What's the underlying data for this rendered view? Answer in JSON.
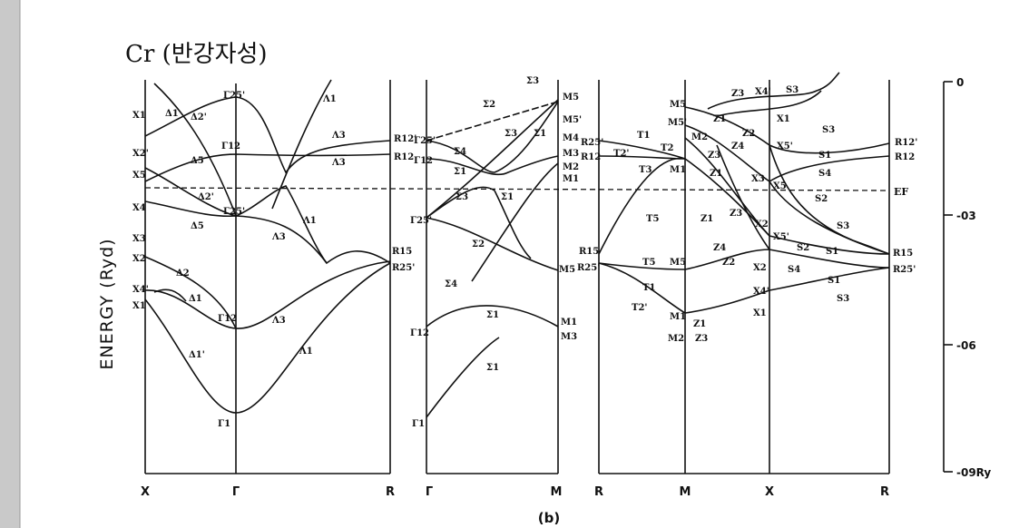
{
  "title": "Cr (반강자성)",
  "y_axis_label": "ENERGY (Ryd)",
  "caption": "(b)",
  "energy_ticks": [
    "0",
    "-03",
    "-06",
    "-09Ry"
  ],
  "fermi_label": "EF",
  "path_labels": [
    "X",
    "Γ",
    "R",
    "Γ",
    "M",
    "R",
    "M",
    "X",
    "R"
  ],
  "panels": [
    {
      "labels": [
        "X1",
        "X2'",
        "X5",
        "X4",
        "X3",
        "X2",
        "X4'",
        "X1",
        "Γ25'",
        "Γ12",
        "Γ25'",
        "Γ12",
        "Γ1",
        "Δ1",
        "Δ2'",
        "Δ5",
        "Δ2'",
        "Δ5",
        "Δ2",
        "Δ1",
        "Δ1'",
        "Λ1",
        "Λ3",
        "Λ3",
        "Λ1",
        "Λ3",
        "Λ3",
        "Λ1",
        "R12'",
        "R12",
        "R15",
        "R25'"
      ]
    },
    {
      "labels": [
        "Γ25'",
        "Γ12",
        "Γ25'",
        "Γ12",
        "Γ1",
        "Σ2",
        "Σ3",
        "Σ3",
        "Σ1",
        "Σ4",
        "Σ1",
        "Σ3",
        "Σ1",
        "Σ2",
        "Σ4",
        "Σ1",
        "Σ1",
        "M5",
        "M5'",
        "M4",
        "M3",
        "M2",
        "M1",
        "M5",
        "M1",
        "M3"
      ]
    },
    {
      "labels": [
        "R25'",
        "R12",
        "R15",
        "R25'",
        "T1",
        "T2'",
        "T2",
        "T3",
        "M1",
        "M5",
        "M5'",
        "M2",
        "T5",
        "T5",
        "M5",
        "T1",
        "T2'",
        "M1",
        "Z1",
        "M2",
        "Z3",
        "Z3",
        "X4'",
        "S3",
        "X1",
        "Z1",
        "Z2",
        "Z4",
        "X5'",
        "S3",
        "S1",
        "Z3",
        "Z1",
        "X3",
        "X5",
        "S4",
        "S2",
        "Z1",
        "Z3",
        "X2",
        "X5'",
        "S3",
        "Z4",
        "S2",
        "S1",
        "Z2",
        "X2",
        "S4",
        "X4'",
        "S1",
        "S3",
        "X1",
        "R15",
        "R25'",
        "R12'",
        "R12"
      ]
    }
  ]
}
